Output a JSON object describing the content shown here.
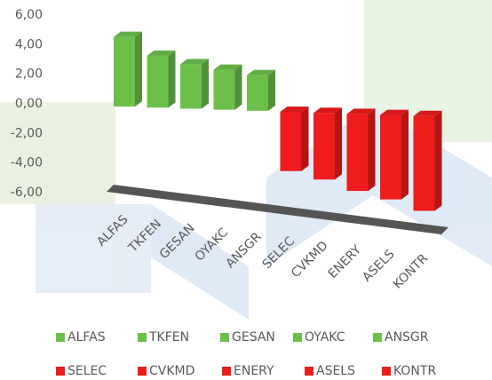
{
  "chart_data": {
    "type": "bar3d",
    "categories": [
      "ALFAS",
      "TKFEN",
      "GESAN",
      "OYAKC",
      "ANSGR",
      "SELEC",
      "CVKMD",
      "ENERY",
      "ASELS",
      "KONTR"
    ],
    "values": [
      4.7,
      3.5,
      3.0,
      2.7,
      2.4,
      -4.0,
      -4.5,
      -5.2,
      -5.7,
      -6.4
    ],
    "colors": [
      "#6cc04a",
      "#6cc04a",
      "#6cc04a",
      "#6cc04a",
      "#6cc04a",
      "#ee1c1c",
      "#ee1c1c",
      "#ee1c1c",
      "#ee1c1c",
      "#ee1c1c"
    ],
    "ylim": [
      -6,
      6
    ],
    "yticks": [
      {
        "value": 6,
        "label": "6,00"
      },
      {
        "value": 4,
        "label": "4,00"
      },
      {
        "value": 2,
        "label": "2,00"
      },
      {
        "value": 0,
        "label": "0,00"
      },
      {
        "value": -2,
        "label": "-2,00"
      },
      {
        "value": -4,
        "label": "-4,00"
      },
      {
        "value": -6,
        "label": "-6,00"
      }
    ],
    "grid": false
  }
}
